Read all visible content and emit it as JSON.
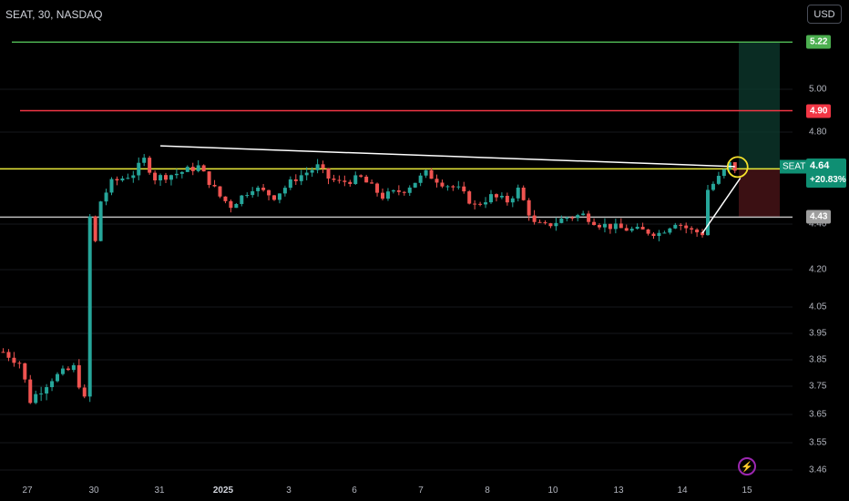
{
  "header": {
    "symbol_title": "SEAT, 30, NASDAQ",
    "currency_button": "USD"
  },
  "price_scale": {
    "ticks": [
      "5.00",
      "4.80",
      "4.40",
      "4.20",
      "4.05",
      "3.95",
      "3.85",
      "3.75",
      "3.65",
      "3.55",
      "3.46"
    ],
    "tags": [
      {
        "label": "5.22",
        "color": "#4caf50"
      },
      {
        "label": "4.90",
        "color": "#f23645"
      },
      {
        "label": "4.43",
        "color": "#9e9e9e"
      }
    ]
  },
  "last_price": {
    "symbol": "SEAT",
    "price": "4.64",
    "change": "+20.83%",
    "color": "#0f8f73"
  },
  "time_axis": {
    "labels": [
      "27",
      "30",
      "31",
      "2025",
      "3",
      "6",
      "7",
      "8",
      "10",
      "13",
      "14",
      "15"
    ]
  },
  "colors": {
    "up": "#26a69a",
    "down": "#ef5350",
    "target_line": "#4caf50",
    "stop_line": "#f23645",
    "yellow_line": "#e9e93a",
    "support_line": "#bdbdbd",
    "trend_line": "#ffffff"
  },
  "chart_data": {
    "type": "candlestick",
    "symbol": "SEAT",
    "interval": "30",
    "exchange": "NASDAQ",
    "horizontal_levels": [
      5.22,
      4.9,
      4.64,
      4.43
    ],
    "anchors": [
      {
        "t": 0,
        "p": 3.88
      },
      {
        "t": 3,
        "p": 3.84
      },
      {
        "t": 5,
        "p": 3.7
      },
      {
        "t": 9,
        "p": 3.78
      },
      {
        "t": 13,
        "p": 3.82
      },
      {
        "t": 15,
        "p": 3.7
      },
      {
        "t": 16,
        "p": 4.43
      },
      {
        "t": 17,
        "p": 4.32
      },
      {
        "t": 18,
        "p": 4.5
      },
      {
        "t": 20,
        "p": 4.58
      },
      {
        "t": 24,
        "p": 4.62
      },
      {
        "t": 26,
        "p": 4.68
      },
      {
        "t": 28,
        "p": 4.6
      },
      {
        "t": 32,
        "p": 4.62
      },
      {
        "t": 36,
        "p": 4.65
      },
      {
        "t": 40,
        "p": 4.52
      },
      {
        "t": 42,
        "p": 4.48
      },
      {
        "t": 46,
        "p": 4.56
      },
      {
        "t": 50,
        "p": 4.52
      },
      {
        "t": 54,
        "p": 4.6
      },
      {
        "t": 58,
        "p": 4.65
      },
      {
        "t": 60,
        "p": 4.6
      },
      {
        "t": 62,
        "p": 4.58
      },
      {
        "t": 66,
        "p": 4.6
      },
      {
        "t": 70,
        "p": 4.52
      },
      {
        "t": 74,
        "p": 4.55
      },
      {
        "t": 78,
        "p": 4.62
      },
      {
        "t": 81,
        "p": 4.58
      },
      {
        "t": 84,
        "p": 4.55
      },
      {
        "t": 87,
        "p": 4.48
      },
      {
        "t": 90,
        "p": 4.52
      },
      {
        "t": 93,
        "p": 4.5
      },
      {
        "t": 95,
        "p": 4.55
      },
      {
        "t": 98,
        "p": 4.4
      },
      {
        "t": 100,
        "p": 4.39
      },
      {
        "t": 104,
        "p": 4.43
      },
      {
        "t": 107,
        "p": 4.44
      },
      {
        "t": 110,
        "p": 4.4
      },
      {
        "t": 114,
        "p": 4.38
      },
      {
        "t": 118,
        "p": 4.37
      },
      {
        "t": 121,
        "p": 4.36
      },
      {
        "t": 124,
        "p": 4.41
      },
      {
        "t": 127,
        "p": 4.37
      },
      {
        "t": 129,
        "p": 4.36
      },
      {
        "t": 130,
        "p": 4.55
      },
      {
        "t": 132,
        "p": 4.6
      },
      {
        "t": 134,
        "p": 4.66
      },
      {
        "t": 135,
        "p": 4.64
      }
    ],
    "trend_line": {
      "from": {
        "t": 29,
        "p": 4.74
      },
      "to": {
        "t": 135,
        "p": 4.65
      }
    },
    "rise_line": {
      "from": {
        "t": 129,
        "p": 4.36
      },
      "to": {
        "t": 135,
        "p": 4.64
      }
    },
    "highlight_circle": {
      "t": 135,
      "p": 4.64
    },
    "position": {
      "entry": 4.64,
      "target": 5.22,
      "stop": 4.43
    }
  }
}
